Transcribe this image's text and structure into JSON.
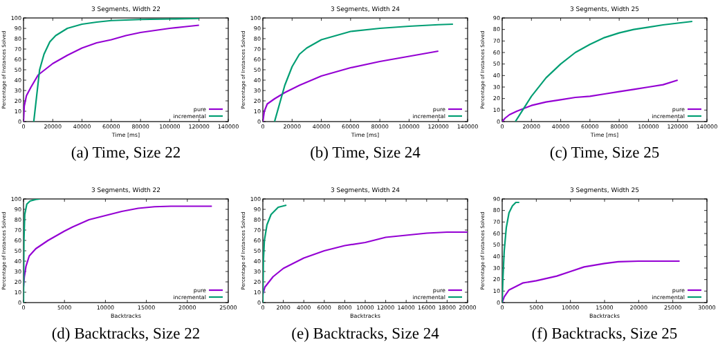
{
  "chart_data": [
    {
      "type": "line",
      "title": "3 Segments, Width 22",
      "xlabel": "Time [ms]",
      "ylabel": "Percentage of Instances Solved",
      "annotations": [
        "(a) Time, Size 22"
      ],
      "legend": "bottom right",
      "xlim": [
        0,
        140000
      ],
      "xticks": [
        0,
        20000,
        40000,
        60000,
        80000,
        100000,
        120000,
        140000
      ],
      "ylim": [
        0,
        100
      ],
      "yticks": [
        0,
        10,
        20,
        30,
        40,
        50,
        60,
        70,
        80,
        90,
        100
      ],
      "series": [
        {
          "name": "pure",
          "color": "#9400d3",
          "x": [
            0,
            500,
            2000,
            5000,
            10000,
            20000,
            30000,
            40000,
            50000,
            60000,
            70000,
            80000,
            90000,
            100000,
            110000,
            120000
          ],
          "values": [
            0,
            15,
            25,
            33,
            45,
            56,
            64,
            71,
            76,
            79,
            83,
            86,
            88,
            90,
            91.5,
            93
          ]
        },
        {
          "name": "incremental",
          "color": "#009e73",
          "x": [
            7000,
            9000,
            11000,
            14000,
            18000,
            22000,
            30000,
            40000,
            50000,
            60000,
            80000,
            100000,
            120000
          ],
          "values": [
            0,
            25,
            50,
            65,
            77,
            83,
            90,
            94,
            96,
            97.5,
            98.5,
            99,
            99.5
          ]
        }
      ]
    },
    {
      "type": "line",
      "title": "3 Segments, Width 24",
      "xlabel": "Time [ms]",
      "ylabel": "Percentage of Instances Solved",
      "annotations": [
        "(b) Time, Size 24"
      ],
      "legend": "bottom right",
      "xlim": [
        0,
        140000
      ],
      "xticks": [
        0,
        20000,
        40000,
        60000,
        80000,
        100000,
        120000,
        140000
      ],
      "ylim": [
        0,
        100
      ],
      "yticks": [
        0,
        10,
        20,
        30,
        40,
        50,
        60,
        70,
        80,
        90,
        100
      ],
      "series": [
        {
          "name": "pure",
          "color": "#9400d3",
          "x": [
            0,
            1000,
            3000,
            8000,
            15000,
            25000,
            40000,
            60000,
            80000,
            100000,
            120000
          ],
          "values": [
            0,
            10,
            17,
            22,
            28,
            35,
            44,
            52,
            58,
            63,
            68
          ]
        },
        {
          "name": "incremental",
          "color": "#009e73",
          "x": [
            8000,
            12000,
            15000,
            20000,
            25000,
            30000,
            40000,
            50000,
            60000,
            80000,
            100000,
            120000,
            130000
          ],
          "values": [
            0,
            20,
            35,
            53,
            65,
            71,
            79,
            83,
            87,
            90,
            92,
            93.5,
            94
          ]
        }
      ]
    },
    {
      "type": "line",
      "title": "3 Segments, Width 25",
      "xlabel": "Time [ms]",
      "ylabel": "Percentage of Instances Solved",
      "annotations": [
        "(c) Time, Size 25"
      ],
      "legend": "bottom right",
      "xlim": [
        0,
        140000
      ],
      "xticks": [
        0,
        20000,
        40000,
        60000,
        80000,
        100000,
        120000,
        140000
      ],
      "ylim": [
        0,
        90
      ],
      "yticks": [
        0,
        10,
        20,
        30,
        40,
        50,
        60,
        70,
        80,
        90
      ],
      "series": [
        {
          "name": "pure",
          "color": "#9400d3",
          "x": [
            0,
            2000,
            5000,
            10000,
            20000,
            30000,
            40000,
            50000,
            60000,
            70000,
            80000,
            90000,
            100000,
            110000,
            120000
          ],
          "values": [
            0,
            3,
            6,
            9,
            14,
            17,
            19,
            21,
            22,
            24,
            26,
            28,
            30,
            32,
            36
          ]
        },
        {
          "name": "incremental",
          "color": "#009e73",
          "x": [
            9000,
            14000,
            20000,
            30000,
            40000,
            50000,
            60000,
            70000,
            80000,
            90000,
            100000,
            110000,
            120000,
            130000
          ],
          "values": [
            0,
            10,
            22,
            38,
            50,
            60,
            67,
            73,
            77,
            80,
            82,
            84,
            85.5,
            87
          ]
        }
      ]
    },
    {
      "type": "line",
      "title": "3 Segments, Width 22",
      "xlabel": "Backtracks",
      "ylabel": "Percentage of Instances Solved",
      "annotations": [
        "(d) Backtracks, Size 22"
      ],
      "legend": "bottom right",
      "xlim": [
        0,
        25000
      ],
      "xticks": [
        0,
        5000,
        10000,
        15000,
        20000,
        25000
      ],
      "ylim": [
        0,
        100
      ],
      "yticks": [
        0,
        10,
        20,
        30,
        40,
        50,
        60,
        70,
        80,
        90,
        100
      ],
      "series": [
        {
          "name": "pure",
          "color": "#9400d3",
          "x": [
            0,
            100,
            300,
            700,
            1500,
            3000,
            5000,
            6000,
            8000,
            10000,
            12000,
            14000,
            16000,
            18000,
            23000
          ],
          "values": [
            15,
            25,
            35,
            45,
            52,
            60,
            69,
            73,
            80,
            84,
            88,
            91,
            92.5,
            93,
            93
          ]
        },
        {
          "name": "incremental",
          "color": "#009e73",
          "x": [
            0,
            50,
            150,
            400,
            800,
            1500,
            2000
          ],
          "values": [
            0,
            60,
            85,
            95,
            98,
            99.5,
            100
          ]
        }
      ]
    },
    {
      "type": "line",
      "title": "3 Segments, Width 24",
      "xlabel": "Backtracks",
      "ylabel": "Percentage of Instances Solved",
      "annotations": [
        "(e) Backtracks, Size 24"
      ],
      "legend": "bottom right",
      "xlim": [
        0,
        20000
      ],
      "xticks": [
        0,
        2000,
        4000,
        6000,
        8000,
        10000,
        12000,
        14000,
        16000,
        18000,
        20000
      ],
      "ylim": [
        0,
        100
      ],
      "yticks": [
        0,
        10,
        20,
        30,
        40,
        50,
        60,
        70,
        80,
        90,
        100
      ],
      "series": [
        {
          "name": "pure",
          "color": "#9400d3",
          "x": [
            0,
            200,
            1000,
            2000,
            4000,
            6000,
            8000,
            10000,
            12000,
            14000,
            16000,
            18000,
            20000
          ],
          "values": [
            8,
            15,
            25,
            33,
            43,
            50,
            55,
            58,
            63,
            65,
            67,
            68,
            68
          ]
        },
        {
          "name": "incremental",
          "color": "#009e73",
          "x": [
            0,
            50,
            150,
            400,
            800,
            1500,
            2300
          ],
          "values": [
            0,
            40,
            60,
            75,
            85,
            92,
            94
          ]
        }
      ]
    },
    {
      "type": "line",
      "title": "3 Segments, Width 25",
      "xlabel": "Backtracks",
      "ylabel": "Percentage of Instances Solved",
      "annotations": [
        "(f) Backtracks, Size 25"
      ],
      "legend": "bottom right",
      "xlim": [
        0,
        30000
      ],
      "xticks": [
        0,
        5000,
        10000,
        15000,
        20000,
        25000,
        30000
      ],
      "ylim": [
        0,
        90
      ],
      "yticks": [
        0,
        10,
        20,
        30,
        40,
        50,
        60,
        70,
        80,
        90
      ],
      "series": [
        {
          "name": "pure",
          "color": "#9400d3",
          "x": [
            0,
            300,
            1000,
            3000,
            5000,
            8000,
            10000,
            12000,
            15000,
            17000,
            20000,
            26000
          ],
          "values": [
            0,
            5,
            11,
            17,
            19,
            23,
            27,
            31,
            34,
            35.5,
            36,
            36
          ]
        },
        {
          "name": "incremental",
          "color": "#009e73",
          "x": [
            0,
            100,
            300,
            600,
            1000,
            1500,
            2000,
            2500
          ],
          "values": [
            0,
            20,
            45,
            65,
            78,
            84,
            87,
            87
          ]
        }
      ]
    }
  ]
}
